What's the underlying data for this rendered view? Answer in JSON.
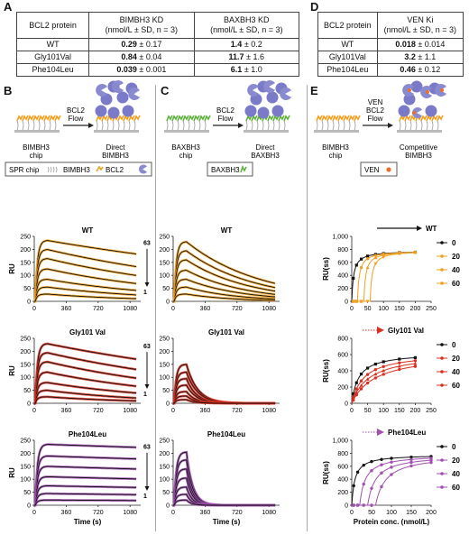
{
  "panels": {
    "A": "A",
    "B": "B",
    "C": "C",
    "D": "D",
    "E": "E"
  },
  "tableA": {
    "headers": [
      "BCL2 protein",
      "BIMBH3 KD",
      "(nmol/L ± SD, n = 3)",
      "BAXBH3 KD",
      "(nmol/L ± SD, n = 3)"
    ],
    "rows": [
      {
        "name": "WT",
        "v1": "0.29",
        "e1": "± 0.17",
        "v2": "1.4",
        "e2": "± 0.2"
      },
      {
        "name": "Gly101Val",
        "v1": "0.84",
        "e1": "± 0.04",
        "v2": "11.7",
        "e2": "± 1.6"
      },
      {
        "name": "Phe104Leu",
        "v1": "0.039",
        "e1": "± 0.001",
        "v2": "6.1",
        "e2": "± 1.0"
      }
    ]
  },
  "tableD": {
    "headers": [
      "BCL2 protein",
      "VEN Ki",
      "(nmol/L ± SD, n = 3)"
    ],
    "rows": [
      {
        "name": "WT",
        "v": "0.018",
        "e": "± 0.014"
      },
      {
        "name": "Gly101Val",
        "v": "3.2",
        "e": "± 1.1"
      },
      {
        "name": "Phe104Leu",
        "v": "0.46",
        "e": "± 0.12"
      }
    ]
  },
  "schematics": {
    "B": {
      "flow1": "BCL2",
      "flow2": "Flow",
      "left": "BIMBH3",
      "left2": "chip",
      "right": "Direct",
      "right2": "BIMBH3"
    },
    "C": {
      "flow1": "BCL2",
      "flow2": "Flow",
      "left": "BAXBH3",
      "left2": "chip",
      "right": "Direct",
      "right2": "BAXBH3"
    },
    "E": {
      "flow0": "VEN",
      "flow1": "BCL2",
      "flow2": "Flow",
      "left": "BIMBH3",
      "left2": "chip",
      "right": "Competitive",
      "right2": "BIMBH3"
    }
  },
  "legends": {
    "B": [
      "SPR chip",
      "BIMBH3",
      "BCL2"
    ],
    "C": [
      "BAXBH3"
    ],
    "E": [
      "VEN"
    ]
  },
  "colors": {
    "WT": "#f0a020",
    "Gly": "#d83020",
    "Phe": "#a050b0",
    "blob": "#7a7ac8",
    "pac": "#8a8ad0",
    "lipid": "#999999",
    "ven": "#e8702a"
  },
  "chart_data": [
    {
      "type": "line",
      "panel": "B",
      "title": "WT",
      "ylabel": "RU",
      "xlabel": "",
      "ylim": [
        0,
        250
      ],
      "yticks": [
        0,
        50,
        100,
        150,
        200,
        250
      ],
      "xticks": [
        0,
        360,
        720,
        1080
      ],
      "fit_color": "#f0a020",
      "top_label": "63",
      "bottom_label": "1",
      "series": [
        {
          "plateau": 235,
          "decay": 0.00025
        },
        {
          "plateau": 200,
          "decay": 0.0004
        },
        {
          "plateau": 165,
          "decay": 0.0005
        },
        {
          "plateau": 125,
          "decay": 0.0006
        },
        {
          "plateau": 85,
          "decay": 0.0007
        },
        {
          "plateau": 55,
          "decay": 0.0008
        },
        {
          "plateau": 28,
          "decay": 0.001
        }
      ]
    },
    {
      "type": "line",
      "panel": "B",
      "title": "Gly101 Val",
      "ylabel": "RU",
      "xlabel": "",
      "ylim": [
        0,
        250
      ],
      "yticks": [
        0,
        50,
        100,
        150,
        200,
        250
      ],
      "xticks": [
        0,
        360,
        720,
        1080
      ],
      "fit_color": "#d83020",
      "top_label": "63",
      "bottom_label": "1",
      "series": [
        {
          "plateau": 230,
          "decay": 0.0003
        },
        {
          "plateau": 195,
          "decay": 0.0004
        },
        {
          "plateau": 160,
          "decay": 0.0005
        },
        {
          "plateau": 120,
          "decay": 0.0006
        },
        {
          "plateau": 80,
          "decay": 0.0007
        },
        {
          "plateau": 50,
          "decay": 0.0009
        },
        {
          "plateau": 25,
          "decay": 0.001
        }
      ]
    },
    {
      "type": "line",
      "panel": "B",
      "title": "Phe104Leu",
      "ylabel": "RU",
      "xlabel": "Time (s)",
      "ylim": [
        0,
        250
      ],
      "yticks": [
        0,
        50,
        100,
        150,
        200,
        250
      ],
      "xticks": [
        0,
        360,
        720,
        1080
      ],
      "fit_color": "#a050b0",
      "top_label": "63",
      "bottom_label": "1",
      "series": [
        {
          "plateau": 235,
          "decay": 5e-05
        },
        {
          "plateau": 190,
          "decay": 6e-05
        },
        {
          "plateau": 150,
          "decay": 7e-05
        },
        {
          "plateau": 110,
          "decay": 8e-05
        },
        {
          "plateau": 75,
          "decay": 9e-05
        },
        {
          "plateau": 45,
          "decay": 0.0001
        },
        {
          "plateau": 20,
          "decay": 0.0001
        }
      ]
    },
    {
      "type": "line",
      "panel": "C",
      "title": "WT",
      "ylabel": "",
      "xlabel": "",
      "ylim": [
        0,
        250
      ],
      "yticks": [
        0,
        50,
        100,
        150,
        200,
        250
      ],
      "xticks": [
        0,
        360,
        720,
        1080
      ],
      "fit_color": "#f0a020",
      "series": [
        {
          "plateau": 230,
          "decay": 0.0012
        },
        {
          "plateau": 195,
          "decay": 0.0013
        },
        {
          "plateau": 160,
          "decay": 0.0014
        },
        {
          "plateau": 120,
          "decay": 0.0015
        },
        {
          "plateau": 85,
          "decay": 0.0016
        },
        {
          "plateau": 55,
          "decay": 0.0018
        },
        {
          "plateau": 28,
          "decay": 0.002
        }
      ]
    },
    {
      "type": "line",
      "panel": "C",
      "title": "Gly101 Val",
      "ylabel": "",
      "xlabel": "",
      "ylim": [
        0,
        250
      ],
      "yticks": [
        0,
        50,
        100,
        150,
        200,
        250
      ],
      "xticks": [
        0,
        360,
        720,
        1080
      ],
      "fit_color": "#d83020",
      "series": [
        {
          "plateau": 150,
          "decay": 0.008
        },
        {
          "plateau": 120,
          "decay": 0.008
        },
        {
          "plateau": 95,
          "decay": 0.009
        },
        {
          "plateau": 70,
          "decay": 0.009
        },
        {
          "plateau": 45,
          "decay": 0.01
        },
        {
          "plateau": 28,
          "decay": 0.01
        },
        {
          "plateau": 14,
          "decay": 0.011
        }
      ]
    },
    {
      "type": "line",
      "panel": "C",
      "title": "Phe104Leu",
      "ylabel": "",
      "xlabel": "Time (s)",
      "ylim": [
        0,
        250
      ],
      "yticks": [
        0,
        50,
        100,
        150,
        200,
        250
      ],
      "xticks": [
        0,
        360,
        720,
        1080
      ],
      "fit_color": "#a050b0",
      "series": [
        {
          "plateau": 205,
          "decay": 0.014
        },
        {
          "plateau": 175,
          "decay": 0.014
        },
        {
          "plateau": 140,
          "decay": 0.015
        },
        {
          "plateau": 105,
          "decay": 0.015
        },
        {
          "plateau": 70,
          "decay": 0.016
        },
        {
          "plateau": 42,
          "decay": 0.017
        },
        {
          "plateau": 20,
          "decay": 0.018
        }
      ]
    },
    {
      "type": "scatter",
      "panel": "E",
      "title": "WT",
      "ylabel": "RU(ss)",
      "xlabel": "",
      "ylim": [
        0,
        1000
      ],
      "yticks": [
        0,
        200,
        400,
        600,
        800,
        1000
      ],
      "yticklabels": [
        "0",
        "200",
        "400",
        "600",
        "800",
        "1,000"
      ],
      "xticks": [
        0,
        50,
        100,
        150,
        200,
        250
      ],
      "color": "#f0a020",
      "series": [
        {
          "name": "0",
          "offset": 0,
          "marker": "square"
        },
        {
          "name": "20",
          "offset": 18,
          "marker": "circle"
        },
        {
          "name": "40",
          "offset": 38,
          "marker": "triangle"
        },
        {
          "name": "60",
          "offset": 58,
          "marker": "tri-down"
        }
      ]
    },
    {
      "type": "scatter",
      "panel": "E",
      "title": "Gly101 Val",
      "ylabel": "RU(ss)",
      "xlabel": "",
      "ylim": [
        0,
        800
      ],
      "yticks": [
        0,
        200,
        400,
        600,
        800
      ],
      "yticklabels": [
        "0",
        "200",
        "400",
        "600",
        "800"
      ],
      "xticks": [
        0,
        50,
        100,
        150,
        200,
        250
      ],
      "color": "#d83020",
      "series": [
        {
          "name": "0",
          "offset": 0,
          "k": 22,
          "marker": "square"
        },
        {
          "name": "20",
          "offset": 0,
          "k": 38,
          "marker": "circle"
        },
        {
          "name": "40",
          "offset": 0,
          "k": 55,
          "marker": "triangle"
        },
        {
          "name": "60",
          "offset": 0,
          "k": 75,
          "marker": "circle"
        }
      ]
    },
    {
      "type": "scatter",
      "panel": "E",
      "title": "Phe104Leu",
      "ylabel": "RU(ss)",
      "xlabel": "Protein conc. (nmol/L)",
      "ylim": [
        0,
        1000
      ],
      "yticks": [
        0,
        200,
        400,
        600,
        800,
        1000
      ],
      "yticklabels": [
        "0",
        "200",
        "400",
        "600",
        "800",
        "1,000"
      ],
      "xticks": [
        0,
        50,
        100,
        150,
        200
      ],
      "color": "#a050b0",
      "series": [
        {
          "name": "0",
          "offset": 0,
          "k": 8,
          "marker": "circle"
        },
        {
          "name": "20",
          "offset": 20,
          "k": 14,
          "marker": "circle"
        },
        {
          "name": "40",
          "offset": 40,
          "k": 20,
          "marker": "circle"
        },
        {
          "name": "60",
          "offset": 60,
          "k": 26,
          "marker": "circle"
        }
      ]
    }
  ]
}
